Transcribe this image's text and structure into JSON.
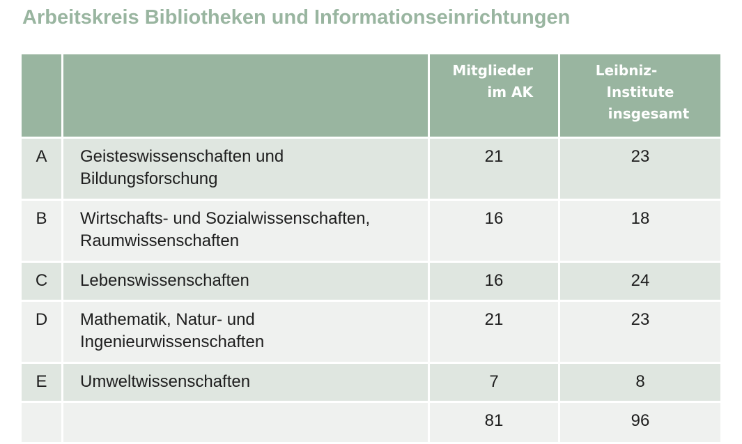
{
  "title": "Arbeitskreis Bibliotheken und Informationseinrichtungen",
  "table": {
    "headers": {
      "key": "",
      "section": "",
      "members": [
        "Mitglieder",
        "im AK"
      ],
      "institutes": [
        "Leibniz-",
        "Institute",
        "insgesamt"
      ]
    },
    "rows": [
      {
        "key": "A",
        "name": [
          "Geisteswissenschaften und",
          "Bildungsforschung"
        ],
        "members": "21",
        "institutes": "23"
      },
      {
        "key": "B",
        "name": [
          "Wirtschafts- und Sozialwissenschaften,",
          "Raumwissenschaften"
        ],
        "members": "16",
        "institutes": "18"
      },
      {
        "key": "C",
        "name": [
          "Lebenswissenschaften"
        ],
        "members": "16",
        "institutes": "24"
      },
      {
        "key": "D",
        "name": [
          "Mathematik, Natur- und",
          "Ingenieurwissenschaften"
        ],
        "members": "21",
        "institutes": "23"
      },
      {
        "key": "E",
        "name": [
          "Umweltwissenschaften"
        ],
        "members": "7",
        "institutes": "8"
      }
    ],
    "total": {
      "key": "",
      "name": "",
      "members": "81",
      "institutes": "96"
    }
  }
}
